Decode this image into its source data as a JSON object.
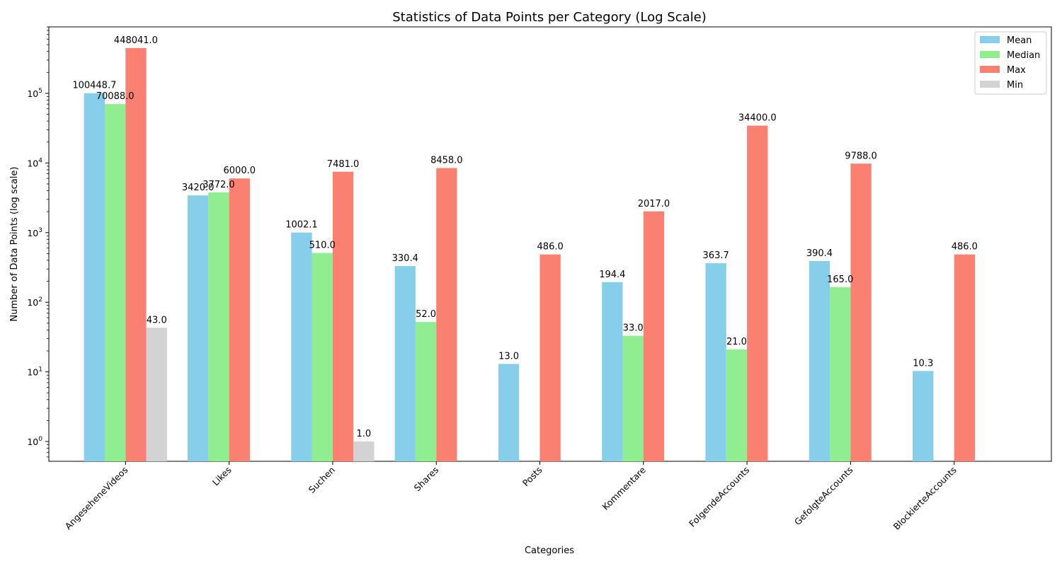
{
  "chart_data": {
    "type": "bar",
    "title": "Statistics of Data Points per Category (Log Scale)",
    "xlabel": "Categories",
    "ylabel": "Number of Data Points (log scale)",
    "yscale": "log",
    "ylim": [
      0.52,
      900000
    ],
    "yticks": [
      {
        "value": 1,
        "base": "10",
        "exp": "0"
      },
      {
        "value": 10,
        "base": "10",
        "exp": "1"
      },
      {
        "value": 100,
        "base": "10",
        "exp": "2"
      },
      {
        "value": 1000,
        "base": "10",
        "exp": "3"
      },
      {
        "value": 10000,
        "base": "10",
        "exp": "4"
      },
      {
        "value": 100000,
        "base": "10",
        "exp": "5"
      }
    ],
    "grid": false,
    "legend_position": "top-right",
    "categories": [
      "AngeseheneVideos",
      "Likes",
      "Suchen",
      "Shares",
      "Posts",
      "Kommentare",
      "FolgendeAccounts",
      "GefolgteAccounts",
      "BlockierteAccounts"
    ],
    "series": [
      {
        "name": "Mean",
        "color": "#87ceeb",
        "values": [
          100448.7,
          3420.0,
          1002.1,
          330.4,
          13.0,
          194.4,
          363.7,
          390.4,
          10.3
        ],
        "labels": [
          "100448.7",
          "3420.0",
          "1002.1",
          "330.4",
          "13.0",
          "194.4",
          "363.7",
          "390.4",
          "10.3"
        ]
      },
      {
        "name": "Median",
        "color": "#90ee90",
        "values": [
          70088.0,
          3772.0,
          510.0,
          52.0,
          0,
          33.0,
          21.0,
          165.0,
          0
        ],
        "labels": [
          "70088.0",
          "3772.0",
          "510.0",
          "52.0",
          "",
          "33.0",
          "21.0",
          "165.0",
          ""
        ]
      },
      {
        "name": "Max",
        "color": "#fa8072",
        "values": [
          448041.0,
          6000.0,
          7481.0,
          8458.0,
          486.0,
          2017.0,
          34400.0,
          9788.0,
          486.0
        ],
        "labels": [
          "448041.0",
          "6000.0",
          "7481.0",
          "8458.0",
          "486.0",
          "2017.0",
          "34400.0",
          "9788.0",
          "486.0"
        ]
      },
      {
        "name": "Min",
        "color": "#d3d3d3",
        "values": [
          43.0,
          0,
          1.0,
          0,
          0,
          0,
          0,
          0,
          0
        ],
        "labels": [
          "43.0",
          "",
          "1.0",
          "",
          "",
          "",
          "",
          "",
          ""
        ]
      }
    ]
  }
}
